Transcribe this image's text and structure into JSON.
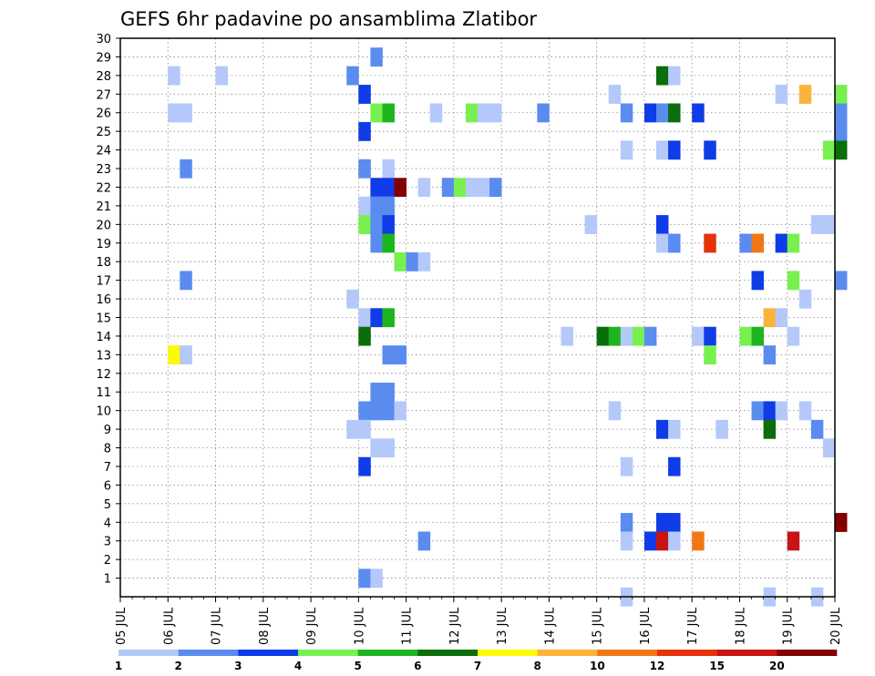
{
  "chart_data": {
    "type": "heatmap",
    "title": "GEFS 6hr padavine po ansamblima Zlatibor",
    "y_ticks": [
      "1",
      "2",
      "3",
      "4",
      "5",
      "6",
      "7",
      "8",
      "9",
      "10",
      "11",
      "12",
      "13",
      "14",
      "15",
      "16",
      "17",
      "18",
      "19",
      "20",
      "21",
      "22",
      "23",
      "24",
      "25",
      "26",
      "27",
      "28",
      "29",
      "30"
    ],
    "x_ticks": [
      "05 JUL",
      "06 JUL",
      "07 JUL",
      "08 JUL",
      "09 JUL",
      "10 JUL",
      "11 JUL",
      "12 JUL",
      "13 JUL",
      "14 JUL",
      "15 JUL",
      "16 JUL",
      "17 JUL",
      "18 JUL",
      "19 JUL",
      "20 JUL"
    ],
    "ylim": [
      0,
      30
    ],
    "time_step_hours": 6,
    "legend_levels": [
      "1",
      "2",
      "3",
      "4",
      "5",
      "6",
      "7",
      "8",
      "10",
      "12",
      "15",
      "20"
    ],
    "legend_colors": [
      "#b4c8fa",
      "#5a8cf0",
      "#0f3ce6",
      "#78f050",
      "#1eb41e",
      "#0a6e0a",
      "#fafa0a",
      "#fab43c",
      "#f07814",
      "#e6320a",
      "#c81414",
      "#820000"
    ],
    "cell_colors": [
      "#b4c8fa",
      "#5a8cf0",
      "#0f3ce6",
      "#78f050",
      "#1eb41e",
      "#0a6e0a",
      "#fafa0a",
      "#fab43c",
      "#f07814",
      "#e6320a",
      "#c81414",
      "#820000"
    ],
    "cells": [
      {
        "t": "06 JUL 00",
        "y": 28,
        "c": 0
      },
      {
        "t": "07 JUL 00",
        "y": 28,
        "c": 0
      },
      {
        "t": "09 JUL 18",
        "y": 28,
        "c": 1
      },
      {
        "t": "10 JUL 06",
        "y": 29,
        "c": 1
      },
      {
        "t": "10 JUL 00",
        "y": 27,
        "c": 2
      },
      {
        "t": "06 JUL 00",
        "y": 26,
        "c": 0
      },
      {
        "t": "06 JUL 06",
        "y": 26,
        "c": 0
      },
      {
        "t": "10 JUL 06",
        "y": 26,
        "c": 3
      },
      {
        "t": "10 JUL 12",
        "y": 26,
        "c": 4
      },
      {
        "t": "11 JUL 12",
        "y": 26,
        "c": 0
      },
      {
        "t": "12 JUL 06",
        "y": 26,
        "c": 3
      },
      {
        "t": "12 JUL 12",
        "y": 26,
        "c": 0
      },
      {
        "t": "12 JUL 18",
        "y": 26,
        "c": 0
      },
      {
        "t": "13 JUL 18",
        "y": 26,
        "c": 1
      },
      {
        "t": "15 JUL 06",
        "y": 27,
        "c": 0
      },
      {
        "t": "15 JUL 12",
        "y": 26,
        "c": 1
      },
      {
        "t": "16 JUL 00",
        "y": 26,
        "c": 2
      },
      {
        "t": "16 JUL 06",
        "y": 26,
        "c": 1
      },
      {
        "t": "16 JUL 12",
        "y": 26,
        "c": 5
      },
      {
        "t": "17 JUL 00",
        "y": 26,
        "c": 2
      },
      {
        "t": "16 JUL 06",
        "y": 28,
        "c": 5
      },
      {
        "t": "16 JUL 12",
        "y": 28,
        "c": 0
      },
      {
        "t": "18 JUL 18",
        "y": 27,
        "c": 0
      },
      {
        "t": "19 JUL 06",
        "y": 27,
        "c": 7
      },
      {
        "t": "20 JUL 00",
        "y": 27,
        "c": 3
      },
      {
        "t": "20 JUL 00",
        "y": 26,
        "c": 1
      },
      {
        "t": "20 JUL 00",
        "y": 25,
        "c": 1
      },
      {
        "t": "10 JUL 00",
        "y": 25,
        "c": 2
      },
      {
        "t": "15 JUL 12",
        "y": 24,
        "c": 0
      },
      {
        "t": "16 JUL 06",
        "y": 24,
        "c": 0
      },
      {
        "t": "16 JUL 12",
        "y": 24,
        "c": 2
      },
      {
        "t": "17 JUL 06",
        "y": 24,
        "c": 2
      },
      {
        "t": "19 JUL 18",
        "y": 24,
        "c": 3
      },
      {
        "t": "20 JUL 00",
        "y": 24,
        "c": 5
      },
      {
        "t": "06 JUL 06",
        "y": 23,
        "c": 1
      },
      {
        "t": "10 JUL 00",
        "y": 23,
        "c": 1
      },
      {
        "t": "10 JUL 12",
        "y": 23,
        "c": 0
      },
      {
        "t": "10 JUL 06",
        "y": 22,
        "c": 2
      },
      {
        "t": "10 JUL 12",
        "y": 22,
        "c": 2
      },
      {
        "t": "10 JUL 18",
        "y": 22,
        "c": 11
      },
      {
        "t": "11 JUL 06",
        "y": 22,
        "c": 0
      },
      {
        "t": "11 JUL 18",
        "y": 22,
        "c": 1
      },
      {
        "t": "12 JUL 00",
        "y": 22,
        "c": 3
      },
      {
        "t": "12 JUL 06",
        "y": 22,
        "c": 0
      },
      {
        "t": "12 JUL 12",
        "y": 22,
        "c": 0
      },
      {
        "t": "12 JUL 18",
        "y": 22,
        "c": 1
      },
      {
        "t": "10 JUL 00",
        "y": 21,
        "c": 0
      },
      {
        "t": "10 JUL 06",
        "y": 21,
        "c": 1
      },
      {
        "t": "10 JUL 12",
        "y": 21,
        "c": 1
      },
      {
        "t": "10 JUL 00",
        "y": 20,
        "c": 3
      },
      {
        "t": "10 JUL 06",
        "y": 20,
        "c": 1
      },
      {
        "t": "10 JUL 12",
        "y": 20,
        "c": 2
      },
      {
        "t": "10 JUL 06",
        "y": 19,
        "c": 1
      },
      {
        "t": "10 JUL 12",
        "y": 19,
        "c": 4
      },
      {
        "t": "14 JUL 18",
        "y": 20,
        "c": 0
      },
      {
        "t": "16 JUL 06",
        "y": 20,
        "c": 2
      },
      {
        "t": "16 JUL 06",
        "y": 19,
        "c": 0
      },
      {
        "t": "16 JUL 12",
        "y": 19,
        "c": 1
      },
      {
        "t": "17 JUL 06",
        "y": 19,
        "c": 9
      },
      {
        "t": "18 JUL 00",
        "y": 19,
        "c": 1
      },
      {
        "t": "18 JUL 06",
        "y": 19,
        "c": 8
      },
      {
        "t": "18 JUL 18",
        "y": 19,
        "c": 2
      },
      {
        "t": "19 JUL 00",
        "y": 19,
        "c": 3
      },
      {
        "t": "19 JUL 12",
        "y": 20,
        "c": 0
      },
      {
        "t": "19 JUL 18",
        "y": 20,
        "c": 0
      },
      {
        "t": "10 JUL 18",
        "y": 18,
        "c": 3
      },
      {
        "t": "11 JUL 00",
        "y": 18,
        "c": 1
      },
      {
        "t": "11 JUL 06",
        "y": 18,
        "c": 0
      },
      {
        "t": "06 JUL 06",
        "y": 17,
        "c": 1
      },
      {
        "t": "18 JUL 06",
        "y": 17,
        "c": 2
      },
      {
        "t": "19 JUL 00",
        "y": 17,
        "c": 3
      },
      {
        "t": "19 JUL 06",
        "y": 16,
        "c": 0
      },
      {
        "t": "20 JUL 00",
        "y": 17,
        "c": 1
      },
      {
        "t": "09 JUL 18",
        "y": 16,
        "c": 0
      },
      {
        "t": "10 JUL 00",
        "y": 15,
        "c": 0
      },
      {
        "t": "10 JUL 06",
        "y": 15,
        "c": 2
      },
      {
        "t": "10 JUL 12",
        "y": 15,
        "c": 4
      },
      {
        "t": "18 JUL 12",
        "y": 15,
        "c": 7
      },
      {
        "t": "18 JUL 18",
        "y": 15,
        "c": 0
      },
      {
        "t": "10 JUL 00",
        "y": 14,
        "c": 5
      },
      {
        "t": "14 JUL 06",
        "y": 14,
        "c": 0
      },
      {
        "t": "15 JUL 00",
        "y": 14,
        "c": 5
      },
      {
        "t": "15 JUL 06",
        "y": 14,
        "c": 4
      },
      {
        "t": "15 JUL 12",
        "y": 14,
        "c": 0
      },
      {
        "t": "15 JUL 18",
        "y": 14,
        "c": 3
      },
      {
        "t": "16 JUL 00",
        "y": 14,
        "c": 1
      },
      {
        "t": "17 JUL 00",
        "y": 14,
        "c": 0
      },
      {
        "t": "17 JUL 06",
        "y": 14,
        "c": 2
      },
      {
        "t": "18 JUL 00",
        "y": 14,
        "c": 3
      },
      {
        "t": "18 JUL 06",
        "y": 14,
        "c": 4
      },
      {
        "t": "19 JUL 00",
        "y": 14,
        "c": 0
      },
      {
        "t": "06 JUL 00",
        "y": 13,
        "c": 6
      },
      {
        "t": "06 JUL 06",
        "y": 13,
        "c": 0
      },
      {
        "t": "10 JUL 12",
        "y": 13,
        "c": 1
      },
      {
        "t": "10 JUL 18",
        "y": 13,
        "c": 1
      },
      {
        "t": "17 JUL 06",
        "y": 13,
        "c": 3
      },
      {
        "t": "18 JUL 12",
        "y": 13,
        "c": 1
      },
      {
        "t": "10 JUL 00",
        "y": 10,
        "c": 1
      },
      {
        "t": "10 JUL 06",
        "y": 10,
        "c": 1
      },
      {
        "t": "10 JUL 12",
        "y": 10,
        "c": 1
      },
      {
        "t": "10 JUL 06",
        "y": 11,
        "c": 1
      },
      {
        "t": "10 JUL 12",
        "y": 11,
        "c": 1
      },
      {
        "t": "10 JUL 18",
        "y": 10,
        "c": 0
      },
      {
        "t": "15 JUL 06",
        "y": 10,
        "c": 0
      },
      {
        "t": "18 JUL 06",
        "y": 10,
        "c": 1
      },
      {
        "t": "18 JUL 12",
        "y": 10,
        "c": 2
      },
      {
        "t": "18 JUL 18",
        "y": 10,
        "c": 0
      },
      {
        "t": "19 JUL 06",
        "y": 10,
        "c": 0
      },
      {
        "t": "09 JUL 18",
        "y": 9,
        "c": 0
      },
      {
        "t": "10 JUL 00",
        "y": 9,
        "c": 0
      },
      {
        "t": "10 JUL 06",
        "y": 8,
        "c": 0
      },
      {
        "t": "10 JUL 12",
        "y": 8,
        "c": 0
      },
      {
        "t": "16 JUL 06",
        "y": 9,
        "c": 2
      },
      {
        "t": "16 JUL 12",
        "y": 9,
        "c": 0
      },
      {
        "t": "17 JUL 12",
        "y": 9,
        "c": 0
      },
      {
        "t": "18 JUL 12",
        "y": 9,
        "c": 5
      },
      {
        "t": "19 JUL 12",
        "y": 9,
        "c": 1
      },
      {
        "t": "19 JUL 18",
        "y": 8,
        "c": 0
      },
      {
        "t": "10 JUL 00",
        "y": 7,
        "c": 2
      },
      {
        "t": "15 JUL 12",
        "y": 7,
        "c": 0
      },
      {
        "t": "16 JUL 12",
        "y": 7,
        "c": 2
      },
      {
        "t": "15 JUL 12",
        "y": 4,
        "c": 1
      },
      {
        "t": "16 JUL 06",
        "y": 4,
        "c": 2
      },
      {
        "t": "16 JUL 12",
        "y": 4,
        "c": 2
      },
      {
        "t": "15 JUL 12",
        "y": 3,
        "c": 0
      },
      {
        "t": "16 JUL 00",
        "y": 3,
        "c": 2
      },
      {
        "t": "16 JUL 06",
        "y": 3,
        "c": 10
      },
      {
        "t": "16 JUL 12",
        "y": 3,
        "c": 0
      },
      {
        "t": "17 JUL 00",
        "y": 3,
        "c": 8
      },
      {
        "t": "19 JUL 00",
        "y": 3,
        "c": 10
      },
      {
        "t": "20 JUL 00",
        "y": 4,
        "c": 11
      },
      {
        "t": "11 JUL 06",
        "y": 3,
        "c": 1
      },
      {
        "t": "10 JUL 00",
        "y": 1,
        "c": 1
      },
      {
        "t": "10 JUL 06",
        "y": 1,
        "c": 0
      },
      {
        "t": "15 JUL 12",
        "y": 0,
        "c": 0
      },
      {
        "t": "18 JUL 12",
        "y": 0,
        "c": 0
      },
      {
        "t": "19 JUL 12",
        "y": 0,
        "c": 0
      }
    ]
  }
}
